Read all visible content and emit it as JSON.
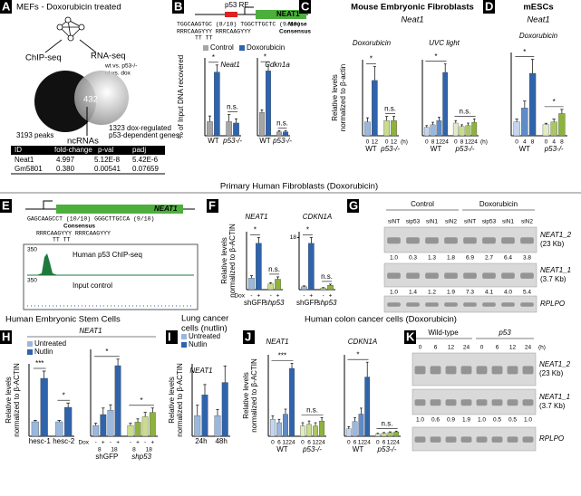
{
  "panels": {
    "A": {
      "letter": "A",
      "title": "MEFs - Doxorubicin treated",
      "chip": "ChIP-seq",
      "rna": "RNA-seq",
      "rna_note": [
        "wt vs. p53-/-",
        "ut vs. dox"
      ],
      "overlap": "432",
      "peaks": "3193 peaks",
      "genes": [
        "1323 dox-regulated",
        "p53-dependent genes"
      ],
      "ncrna": "ncRNAs",
      "table": {
        "header": [
          "ID",
          "fold-change",
          "p-val",
          "padj"
        ],
        "rows": [
          [
            "Neat1",
            "4.997",
            "5.12E-8",
            "5.42E-6"
          ],
          [
            "Gm5801",
            "0.380",
            "0.00541",
            "0.07659"
          ]
        ]
      }
    },
    "B": {
      "letter": "B",
      "re": "p53 RE",
      "gene": "NEAT1",
      "seq": "TGGCAAGTGC (8/10)  TGGCTTGCTC (9/10)",
      "seq_label": "Mouse",
      "consensus": "RRRCAAGYYY   RRRCAAGYYY",
      "consensus_label": "Consensus",
      "tt": "TT                    TT"
    },
    "C": {
      "letter": "C",
      "title": "Mouse Embryonic Fibroblasts",
      "gene": "Neat1"
    },
    "D": {
      "letter": "D",
      "title": "mESCs",
      "gene": "Neat1"
    },
    "fibroblast_title": "Primary Human Fibroblasts (Doxorubicin)",
    "E": {
      "letter": "E",
      "gene": "NEAT1",
      "seq": "GAGCAAGCCT (10/10)  GGGCTTGCCA (9/10)",
      "consensus_label": "Consensus",
      "consensus": "RRRCAAGYYY   RRRCAAGYYY",
      "tt": "TT                    TT",
      "ymax_chip": "350",
      "chip_label": "Human p53 ChIP-seq",
      "ymax_input": "350",
      "input_label": "Input control"
    },
    "F": {
      "letter": "F"
    },
    "G": {
      "letter": "G",
      "conditions": [
        "Control",
        "Doxorubicin"
      ],
      "lanes": [
        "siNT",
        "sip53",
        "siN1",
        "siN2",
        "siNT",
        "sip53",
        "siN1",
        "siN2"
      ],
      "bands": [
        {
          "name": "NEAT1_2",
          "size": "(23 Kb)",
          "quant": [
            "1.0",
            "0.3",
            "1.3",
            "1.8",
            "6.9",
            "2.7",
            "6.4",
            "3.8"
          ]
        },
        {
          "name": "NEAT1_1",
          "size": "(3.7 Kb)",
          "quant": [
            "1.0",
            "1.4",
            "1.2",
            "1.9",
            "7.3",
            "4.1",
            "4.0",
            "5.4"
          ]
        },
        {
          "name": "RPLPO"
        }
      ]
    },
    "H": {
      "letter": "H",
      "title": "Human Embryonic Stem Cells",
      "gene": "NEAT1"
    },
    "I": {
      "letter": "I",
      "title": [
        "Lung cancer",
        "cells (nutlin)"
      ]
    },
    "colon_title": "Human colon cancer cells (Doxorubicin)",
    "J": {
      "letter": "J"
    },
    "K": {
      "letter": "K",
      "conditions": [
        "Wild-type",
        "p53"
      ],
      "lanes": [
        "0",
        "6",
        "12",
        "24",
        "0",
        "6",
        "12",
        "24"
      ],
      "unit": "(h)",
      "bands": [
        {
          "name": "NEAT1_2",
          "size": "(23 Kb)"
        },
        {
          "name": "NEAT1_1",
          "size": "(3.7 Kb)",
          "quant": [
            "1.0",
            "0.6",
            "0.9",
            "1.9",
            "1.0",
            "0.5",
            "0.5",
            "1.0"
          ]
        },
        {
          "name": "RPLPO"
        }
      ]
    }
  },
  "chart_data": [
    {
      "type": "bar",
      "title": "Neat1",
      "ylabel": [
        "% of Input DNA recovered"
      ],
      "legend": [
        {
          "name": "Control",
          "color": "#a6a6a6"
        },
        {
          "name": "Doxorubicin",
          "color": "#2f64ad"
        }
      ],
      "ylim": [
        0,
        5.5
      ],
      "groups": [
        {
          "label": "WT",
          "categories": [
            null,
            null
          ],
          "values": [
            1.0,
            4.5
          ],
          "errors": [
            0.4,
            0.5
          ],
          "colors": [
            "#a6a6a6",
            "#2f64ad"
          ],
          "annotation": "*"
        },
        {
          "label": "p53-/-",
          "categories": [
            null,
            null
          ],
          "values": [
            1.0,
            0.9
          ],
          "errors": [
            0.5,
            0.3
          ],
          "colors": [
            "#a6a6a6",
            "#2f64ad"
          ],
          "annotation": "n.s."
        }
      ]
    },
    {
      "type": "bar",
      "title": "Cdkn1a",
      "ylim": [
        0,
        6
      ],
      "groups": [
        {
          "label": "WT",
          "categories": [
            null,
            null
          ],
          "values": [
            1.8,
            5.0
          ],
          "errors": [
            0.2,
            0.5
          ],
          "colors": [
            "#a6a6a6",
            "#2f64ad"
          ],
          "annotation": "*"
        },
        {
          "label": "p53-/-",
          "categories": [
            null,
            null
          ],
          "values": [
            0.3,
            0.3
          ],
          "errors": [
            0.1,
            0.1
          ],
          "colors": [
            "#a6a6a6",
            "#2f64ad"
          ],
          "annotation": "n.s."
        }
      ]
    },
    {
      "type": "bar",
      "title": "Doxorubicin",
      "ylabel": [
        "Relative levels",
        "normalized to β-actin"
      ],
      "unit": "(h)",
      "ylim": [
        0,
        5.5
      ],
      "groups": [
        {
          "label": "WT",
          "categories": [
            "0",
            "12"
          ],
          "values": [
            1.0,
            4.0
          ],
          "errors": [
            0.3,
            1.0
          ],
          "colors": [
            "#9ab8de",
            "#2f64ad"
          ],
          "annotation": "*"
        },
        {
          "label": "p53-/-",
          "categories": [
            "0",
            "12"
          ],
          "values": [
            1.1,
            1.1
          ],
          "errors": [
            0.3,
            0.3
          ],
          "colors": [
            "#c9dc8f",
            "#8db23d"
          ],
          "annotation": "n.s."
        }
      ]
    },
    {
      "type": "bar",
      "title": "UVC light",
      "unit": "(h)",
      "ylim": [
        0,
        9
      ],
      "groups": [
        {
          "label": "WT",
          "categories": [
            "0",
            "8",
            "12",
            "24"
          ],
          "values": [
            1.0,
            1.3,
            1.8,
            7.5
          ],
          "errors": [
            0.2,
            0.3,
            0.4,
            1.0
          ],
          "colors": [
            "#c4d6ee",
            "#9ab8de",
            "#5f8cc8",
            "#2f64ad"
          ],
          "annotation": "*"
        },
        {
          "label": "p53-/-",
          "categories": [
            "0",
            "8",
            "12",
            "24"
          ],
          "values": [
            1.5,
            1.1,
            1.2,
            1.6
          ],
          "errors": [
            0.3,
            0.2,
            0.3,
            0.4
          ],
          "colors": [
            "#e2ecc4",
            "#c9dc8f",
            "#a9c763",
            "#8db23d"
          ],
          "annotation": "n.s."
        }
      ]
    },
    {
      "type": "bar",
      "title": "Doxorubicin",
      "ylim": [
        0,
        6
      ],
      "groups": [
        {
          "label": "WT",
          "categories": [
            "0",
            "4",
            "8"
          ],
          "values": [
            1.0,
            2.0,
            4.5
          ],
          "errors": [
            0.2,
            0.5,
            1.0
          ],
          "colors": [
            "#c4d6ee",
            "#5f8cc8",
            "#2f64ad"
          ],
          "annotation": "*"
        },
        {
          "label": "p53-/-",
          "categories": [
            "0",
            "4",
            "8"
          ],
          "values": [
            0.8,
            1.0,
            1.6
          ],
          "errors": [
            0.1,
            0.2,
            0.3
          ],
          "colors": [
            "#e2ecc4",
            "#a9c763",
            "#8db23d"
          ],
          "annotation": "*"
        }
      ]
    },
    {
      "type": "bar",
      "title": "NEAT1",
      "ylabel": [
        "Relative levels",
        "normalized to β-ACTIN"
      ],
      "category_label": "Dox",
      "ylim": [
        0,
        5
      ],
      "groups": [
        {
          "label": "shGFP",
          "categories": [
            "-",
            "+"
          ],
          "values": [
            1.0,
            4.0
          ],
          "errors": [
            0.2,
            0.5
          ],
          "colors": [
            "#9ab8de",
            "#2f64ad"
          ],
          "annotation": "*"
        },
        {
          "label": "shp53",
          "categories": [
            "-",
            "+"
          ],
          "values": [
            0.5,
            0.9
          ],
          "errors": [
            0.1,
            0.2
          ],
          "colors": [
            "#c9dc8f",
            "#8db23d"
          ],
          "annotation": "n.s."
        }
      ]
    },
    {
      "type": "bar",
      "title": "CDKN1A",
      "ylim": [
        0,
        20
      ],
      "yticks": [
        18
      ],
      "groups": [
        {
          "label": "shGFP",
          "categories": [
            "-",
            "+"
          ],
          "values": [
            1.0,
            16.0
          ],
          "errors": [
            0.3,
            2.0
          ],
          "colors": [
            "#9ab8de",
            "#2f64ad"
          ],
          "annotation": "*"
        },
        {
          "label": "shp53",
          "categories": [
            "-",
            "+"
          ],
          "values": [
            0.5,
            1.5
          ],
          "errors": [
            0.2,
            0.4
          ],
          "colors": [
            "#c9dc8f",
            "#8db23d"
          ],
          "annotation": "n.s."
        }
      ]
    },
    {
      "type": "bar",
      "ylabel": [
        "Relative levels",
        "normalized to β-ACTIN"
      ],
      "legend": [
        {
          "name": "Untreated",
          "color": "#9ab8de"
        },
        {
          "name": "Nutlin",
          "color": "#2f64ad"
        }
      ],
      "ylim": [
        0,
        5
      ],
      "groups": [
        {
          "label": "hesc-1",
          "categories": [
            null,
            null
          ],
          "values": [
            1.0,
            4.0
          ],
          "errors": [
            0.1,
            0.5
          ],
          "colors": [
            "#9ab8de",
            "#2f64ad"
          ],
          "annotation": "***"
        },
        {
          "label": "hesc-2",
          "categories": [
            null,
            null
          ],
          "values": [
            1.0,
            2.0
          ],
          "errors": [
            0.1,
            0.3
          ],
          "colors": [
            "#9ab8de",
            "#2f64ad"
          ],
          "annotation": "*"
        }
      ]
    },
    {
      "type": "bar",
      "category_label": "Dox",
      "ylim": [
        0,
        8
      ],
      "groups": [
        {
          "label": "shGFP",
          "categories": [
            "-",
            "+",
            "-",
            "+"
          ],
          "times": [
            "8",
            "18"
          ],
          "values": [
            1.0,
            2.0,
            2.4,
            6.5
          ],
          "errors": [
            0.2,
            0.6,
            0.5,
            0.6
          ],
          "colors": [
            "#9ab8de",
            "#2f64ad",
            "#9ab8de",
            "#2f64ad"
          ],
          "annotation": "*"
        },
        {
          "label": "shp53",
          "categories": [
            "-",
            "+",
            "-",
            "+"
          ],
          "times": [
            "8",
            "18"
          ],
          "values": [
            1.0,
            1.3,
            1.8,
            2.2
          ],
          "errors": [
            0.2,
            0.3,
            0.4,
            0.4
          ],
          "colors": [
            "#c9dc8f",
            "#8db23d",
            "#c9dc8f",
            "#8db23d"
          ],
          "annotation": "*"
        }
      ]
    },
    {
      "type": "bar",
      "title": "NEAT1",
      "ylabel": [
        "Relative levels",
        "normalized to β-ACTIN"
      ],
      "legend": [
        {
          "name": "Untreated",
          "color": "#9ab8de"
        },
        {
          "name": "Nutlin",
          "color": "#2f64ad"
        }
      ],
      "ylim": [
        0,
        3.5
      ],
      "groups": [
        {
          "label": "24h",
          "categories": [
            null,
            null
          ],
          "values": [
            1.0,
            2.0
          ],
          "errors": [
            0.5,
            0.5
          ],
          "colors": [
            "#9ab8de",
            "#2f64ad"
          ]
        },
        {
          "label": "48h",
          "categories": [
            null,
            null
          ],
          "values": [
            1.0,
            2.6
          ],
          "errors": [
            0.3,
            0.8
          ],
          "colors": [
            "#9ab8de",
            "#2f64ad"
          ]
        }
      ]
    },
    {
      "type": "bar",
      "title": "NEAT1",
      "ylabel": [
        "Relative levels",
        "normalized to β-ACTIN"
      ],
      "ylim": [
        0,
        4.8
      ],
      "groups": [
        {
          "label": "WT",
          "categories": [
            "0",
            "6",
            "12",
            "24"
          ],
          "values": [
            1.0,
            0.8,
            1.3,
            4.0
          ],
          "errors": [
            0.2,
            0.2,
            0.3,
            0.3
          ],
          "colors": [
            "#c4d6ee",
            "#9ab8de",
            "#5f8cc8",
            "#2f64ad"
          ],
          "annotation": "***"
        },
        {
          "label": "p53-/-",
          "categories": [
            "0",
            "6",
            "12",
            "24"
          ],
          "values": [
            0.6,
            0.7,
            0.6,
            0.9
          ],
          "errors": [
            0.2,
            0.2,
            0.2,
            0.2
          ],
          "colors": [
            "#e2ecc4",
            "#c9dc8f",
            "#a9c763",
            "#8db23d"
          ],
          "annotation": "n.s."
        }
      ]
    },
    {
      "type": "bar",
      "title": "CDKN1A",
      "ylim": [
        0,
        11
      ],
      "groups": [
        {
          "label": "WT",
          "categories": [
            "0",
            "6",
            "12",
            "24"
          ],
          "values": [
            1.0,
            2.0,
            3.0,
            8.0
          ],
          "errors": [
            0.3,
            0.5,
            0.8,
            2.0
          ],
          "colors": [
            "#c4d6ee",
            "#9ab8de",
            "#5f8cc8",
            "#2f64ad"
          ],
          "annotation": "*"
        },
        {
          "label": "p53-/-",
          "categories": [
            "0",
            "6",
            "12",
            "24"
          ],
          "values": [
            0.3,
            0.4,
            0.5,
            0.6
          ],
          "errors": [
            0.1,
            0.1,
            0.1,
            0.1
          ],
          "colors": [
            "#e2ecc4",
            "#c9dc8f",
            "#a9c763",
            "#8db23d"
          ],
          "annotation": "n.s."
        }
      ]
    }
  ]
}
